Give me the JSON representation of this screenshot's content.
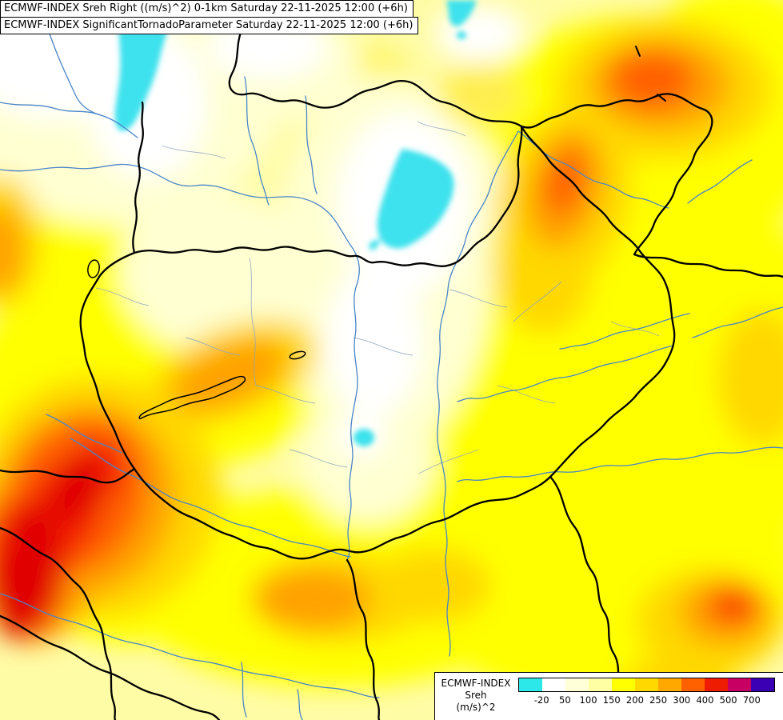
{
  "header": {
    "line1": "ECMWF-INDEX Sreh Right ((m/s)^2) 0-1km Saturday 22-11-2025 12:00 (+6h)",
    "line2": "ECMWF-INDEX SignificantTornadoParameter Saturday 22-11-2025 12:00 (+6h)"
  },
  "legend": {
    "title": "ECMWF-INDEX",
    "parameter": "Sreh",
    "units": "(m/s)^2",
    "ticks": [
      "-20",
      "50",
      "100",
      "150",
      "200",
      "250",
      "300",
      "400",
      "500",
      "700"
    ],
    "colors": [
      "#2CE8E8",
      "#FFFFFF",
      "#FFFFD8",
      "#FFFFA4",
      "#FFFF00",
      "#FFD800",
      "#FFA800",
      "#FF6000",
      "#EE1C00",
      "#C80064",
      "#3C00B4"
    ]
  },
  "map": {
    "base_color": "#FFFCA6",
    "river_color": "#4A85C8",
    "admin_border_color": "#8FA6BE",
    "country_border_color": "#000000",
    "lake_fill_color": "#3CE2EE",
    "region": "Carpathian basin / Hungary"
  }
}
